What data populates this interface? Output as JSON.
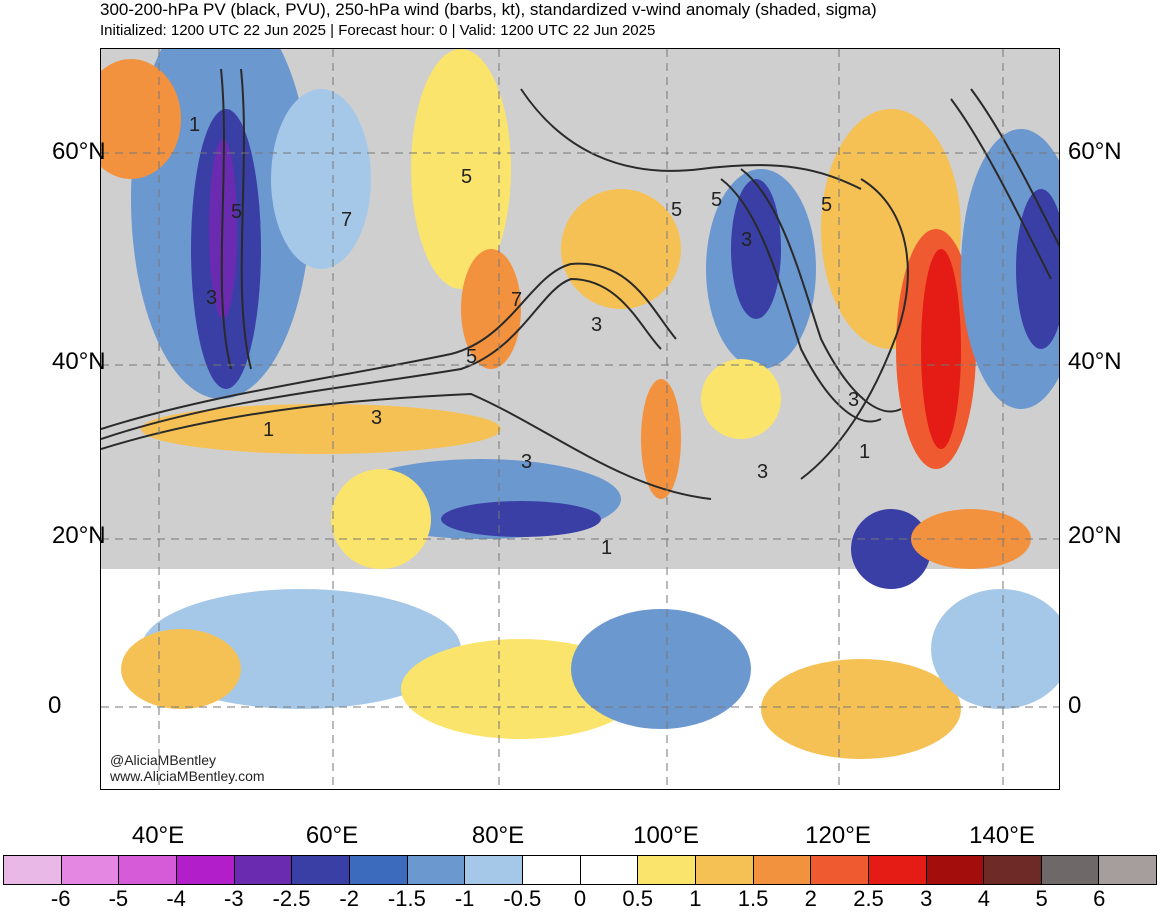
{
  "header": {
    "title": "300-200-hPa PV (black, PVU), 250-hPa wind (barbs, kt), standardized v-wind anomaly (shaded, sigma)",
    "subtitle": "Initialized: 1200 UTC 22 Jun 2025 | Forecast hour: 0 | Valid: 1200 UTC 22 Jun 2025"
  },
  "map": {
    "lat_labels": [
      "60°N",
      "40°N",
      "20°N",
      "0"
    ],
    "lon_labels": [
      "40°E",
      "60°E",
      "80°E",
      "100°E",
      "120°E",
      "140°E"
    ],
    "contour_labels": [
      "1",
      "5",
      "3",
      "7",
      "5",
      "7",
      "3",
      "5",
      "3",
      "5",
      "5",
      "3",
      "5",
      "3",
      "1",
      "3",
      "3",
      "1",
      "1"
    ],
    "credit_handle": "@AliciaMBentley",
    "credit_url": "www.AliciaMBentley.com"
  },
  "colorbar": {
    "labels": [
      "-6",
      "-5",
      "-4",
      "-3",
      "-2.5",
      "-2",
      "-1.5",
      "-1",
      "-0.5",
      "0",
      "0.5",
      "1",
      "1.5",
      "2",
      "2.5",
      "3",
      "4",
      "5",
      "6"
    ],
    "colors": [
      "#e9b8e6",
      "#e487e2",
      "#d65bd8",
      "#b21ec9",
      "#6a2bb0",
      "#3a3fa6",
      "#3c6bbd",
      "#6c98d0",
      "#a6c8e8",
      "#ffffff",
      "#ffffff",
      "#fbe46c",
      "#f6c154",
      "#f3923e",
      "#ef5a30",
      "#e51c16",
      "#a30d0c",
      "#6e2a26",
      "#6f6868",
      "#a69d9d"
    ]
  }
}
